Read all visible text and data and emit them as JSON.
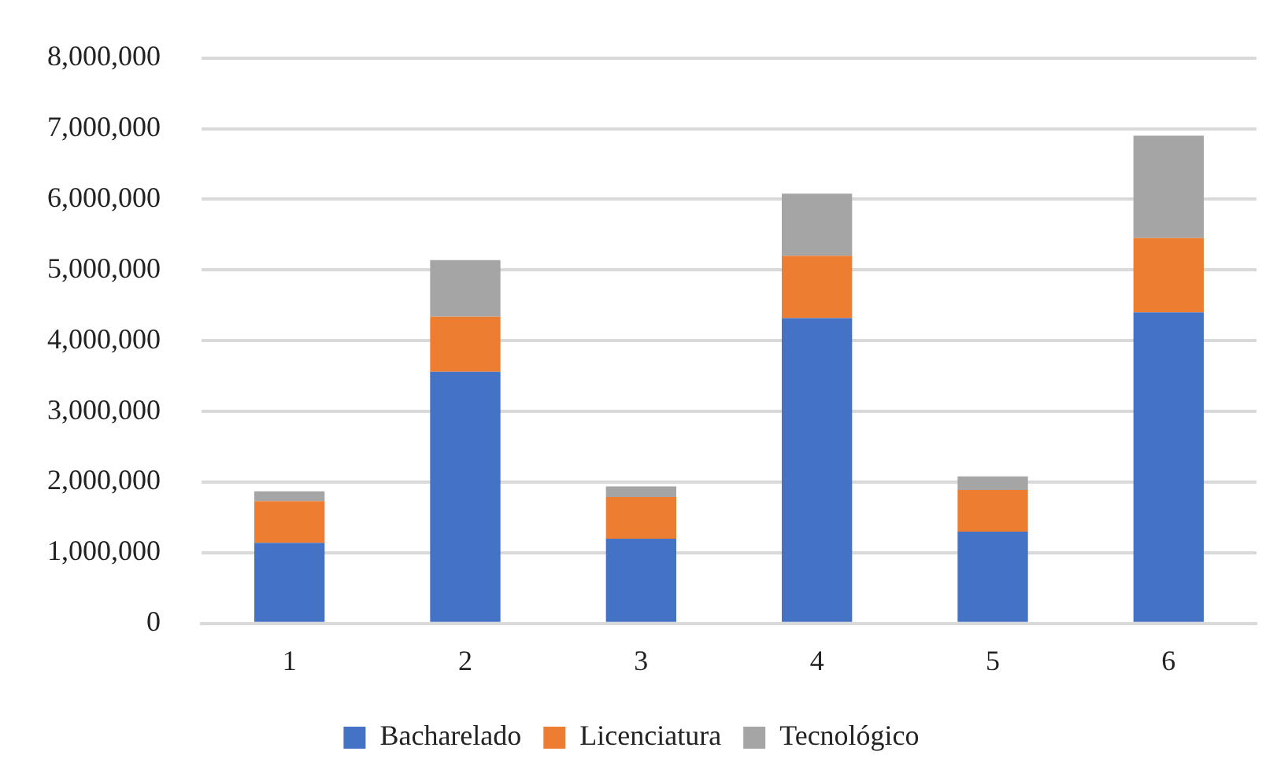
{
  "chart_data": {
    "type": "bar",
    "stacked": true,
    "categories": [
      "1",
      "2",
      "3",
      "4",
      "5",
      "6"
    ],
    "series": [
      {
        "name": "Bacharelado",
        "color": "#4472c4",
        "values": [
          1140000,
          3560000,
          1200000,
          4320000,
          1300000,
          4400000
        ]
      },
      {
        "name": "Licenciatura",
        "color": "#ed7d31",
        "values": [
          590000,
          780000,
          590000,
          880000,
          590000,
          1050000
        ]
      },
      {
        "name": "Tecnológico",
        "color": "#a5a5a5",
        "values": [
          140000,
          800000,
          150000,
          880000,
          190000,
          1450000
        ]
      }
    ],
    "ylim": [
      0,
      8000000
    ],
    "yticks": [
      {
        "value": 0,
        "label": "0"
      },
      {
        "value": 1000000,
        "label": "1,000,000"
      },
      {
        "value": 2000000,
        "label": "2,000,000"
      },
      {
        "value": 3000000,
        "label": "3,000,000"
      },
      {
        "value": 4000000,
        "label": "4,000,000"
      },
      {
        "value": 5000000,
        "label": "5,000,000"
      },
      {
        "value": 6000000,
        "label": "6,000,000"
      },
      {
        "value": 7000000,
        "label": "7,000,000"
      },
      {
        "value": 8000000,
        "label": "8,000,000"
      }
    ],
    "grid": "y",
    "legend": "bottom"
  }
}
